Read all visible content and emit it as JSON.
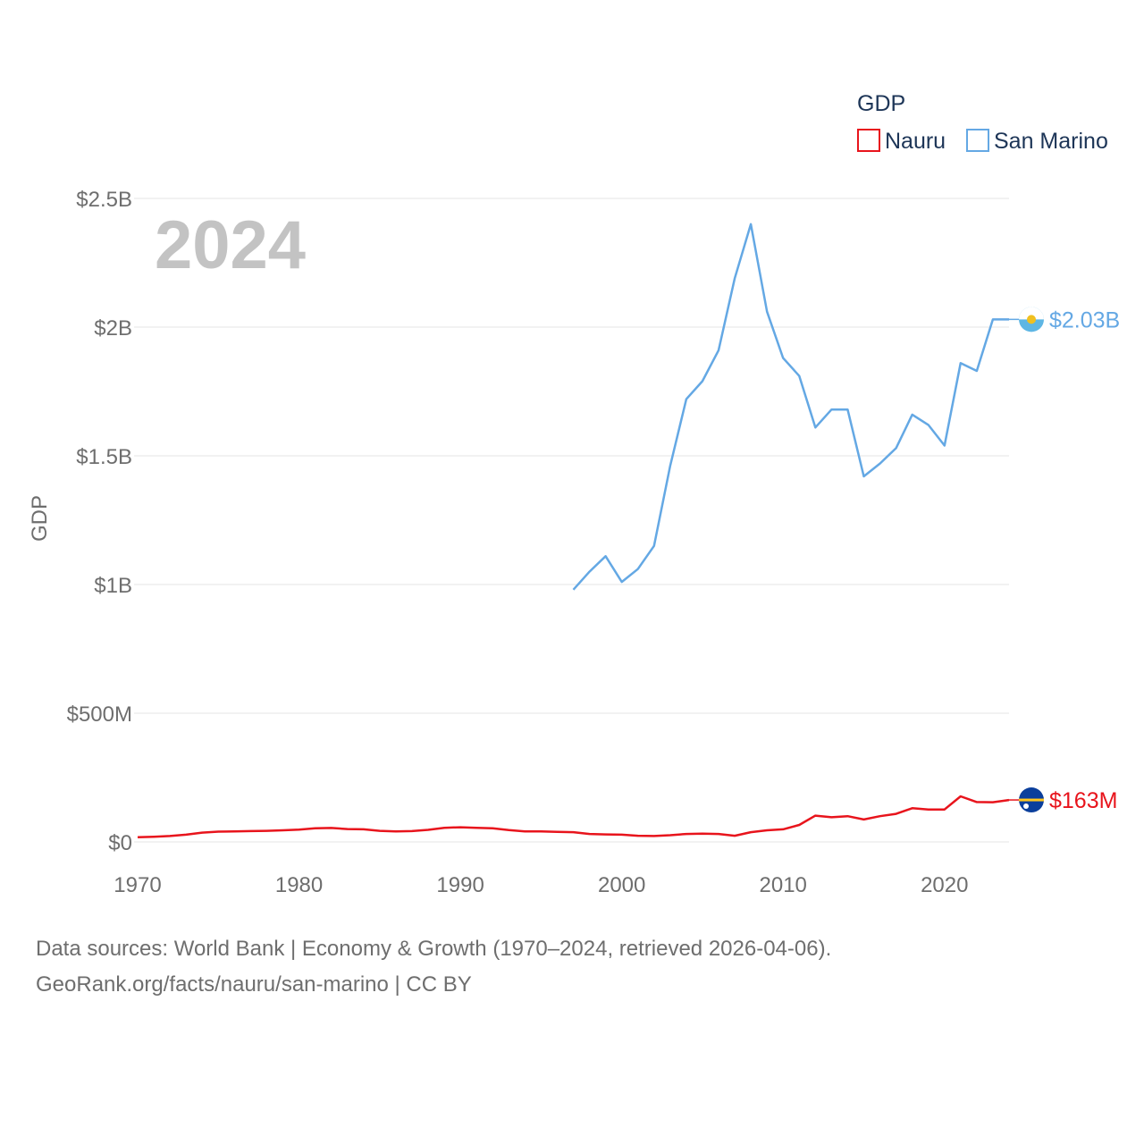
{
  "chart_data": {
    "type": "line",
    "title": "",
    "current_year_label": "2024",
    "xlabel": "",
    "ylabel": "GDP",
    "xlim": [
      1970,
      2024
    ],
    "ylim": [
      0,
      2500000000
    ],
    "x_ticks": [
      1970,
      1980,
      1990,
      2000,
      2010,
      2020
    ],
    "x_tick_labels": [
      "1970",
      "1980",
      "1990",
      "2000",
      "2010",
      "2020"
    ],
    "y_ticks": [
      0,
      500000000,
      1000000000,
      1500000000,
      2000000000,
      2500000000
    ],
    "y_tick_labels": [
      "$0",
      "$500M",
      "$1B",
      "$1.5B",
      "$2B",
      "$2.5B"
    ],
    "legend": {
      "title": "GDP",
      "position": "top-right"
    },
    "series": [
      {
        "name": "Nauru",
        "color": "#e8141c",
        "end_label": "$163M",
        "icon": "nauru-flag-icon",
        "x": [
          1970,
          1971,
          1972,
          1973,
          1974,
          1975,
          1976,
          1977,
          1978,
          1979,
          1980,
          1981,
          1982,
          1983,
          1984,
          1985,
          1986,
          1987,
          1988,
          1989,
          1990,
          1991,
          1992,
          1993,
          1994,
          1995,
          1996,
          1997,
          1998,
          1999,
          2000,
          2001,
          2002,
          2003,
          2004,
          2005,
          2006,
          2007,
          2008,
          2009,
          2010,
          2011,
          2012,
          2013,
          2014,
          2015,
          2016,
          2017,
          2018,
          2019,
          2020,
          2021,
          2022,
          2023,
          2024
        ],
        "values": [
          18000000,
          20000000,
          23000000,
          28000000,
          36000000,
          40000000,
          41000000,
          42000000,
          43000000,
          45000000,
          48000000,
          53000000,
          54000000,
          50000000,
          49000000,
          43000000,
          41000000,
          42000000,
          47000000,
          55000000,
          57000000,
          55000000,
          53000000,
          46000000,
          41000000,
          41000000,
          39000000,
          38000000,
          31000000,
          29000000,
          28000000,
          24000000,
          23000000,
          26000000,
          31000000,
          32000000,
          31000000,
          24000000,
          38000000,
          45000000,
          49000000,
          66000000,
          102000000,
          96000000,
          100000000,
          87000000,
          100000000,
          109000000,
          131000000,
          126000000,
          126000000,
          177000000,
          155000000,
          154000000,
          163000000
        ]
      },
      {
        "name": "San Marino",
        "color": "#64a8e4",
        "end_label": "$2.03B",
        "icon": "san-marino-flag-icon",
        "x": [
          1997,
          1998,
          1999,
          2000,
          2001,
          2002,
          2003,
          2004,
          2005,
          2006,
          2007,
          2008,
          2009,
          2010,
          2011,
          2012,
          2013,
          2014,
          2015,
          2016,
          2017,
          2018,
          2019,
          2020,
          2021,
          2022,
          2023,
          2024
        ],
        "values": [
          980000000,
          1050000000,
          1110000000,
          1010000000,
          1060000000,
          1150000000,
          1460000000,
          1720000000,
          1790000000,
          1910000000,
          2190000000,
          2400000000,
          2060000000,
          1880000000,
          1810000000,
          1610000000,
          1680000000,
          1680000000,
          1420000000,
          1470000000,
          1530000000,
          1660000000,
          1620000000,
          1540000000,
          1860000000,
          1830000000,
          2030000000,
          2030000000
        ]
      }
    ]
  },
  "footer": {
    "line1": "Data sources: World Bank | Economy & Growth (1970–2024, retrieved 2026-04-06).",
    "line2": "GeoRank.org/facts/nauru/san-marino | CC BY"
  }
}
